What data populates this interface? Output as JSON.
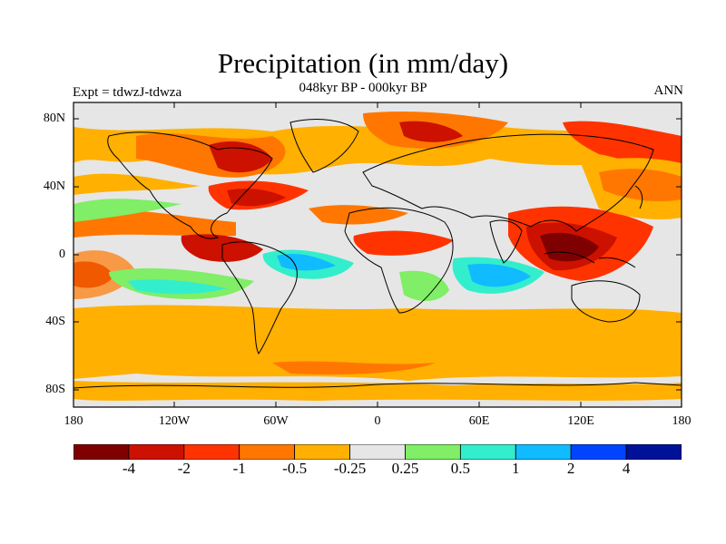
{
  "header": {
    "title": "Precipitation (in mm/day)",
    "subtitle": "048kyr BP - 000kyr BP",
    "experiment": "Expt = tdwzJ-tdwza",
    "season": "ANN"
  },
  "map": {
    "lat_labels": [
      "80N",
      "40N",
      "0",
      "40S",
      "80S"
    ],
    "lon_labels": [
      "180",
      "120W",
      "60W",
      "0",
      "60E",
      "120E",
      "180"
    ],
    "colors": {
      "land_outline": "#000000",
      "neutral": "#e6e6e6"
    }
  },
  "colorbar": {
    "colors": [
      "#7f0000",
      "#cc1100",
      "#ff3300",
      "#ff7700",
      "#ffb000",
      "#e6e6e6",
      "#80ee66",
      "#33eecc",
      "#11bbff",
      "#0044ff",
      "#001199"
    ],
    "labels": [
      "-4",
      "-2",
      "-1",
      "-0.5",
      "-0.25",
      "0.25",
      "0.5",
      "1",
      "2",
      "4"
    ]
  }
}
